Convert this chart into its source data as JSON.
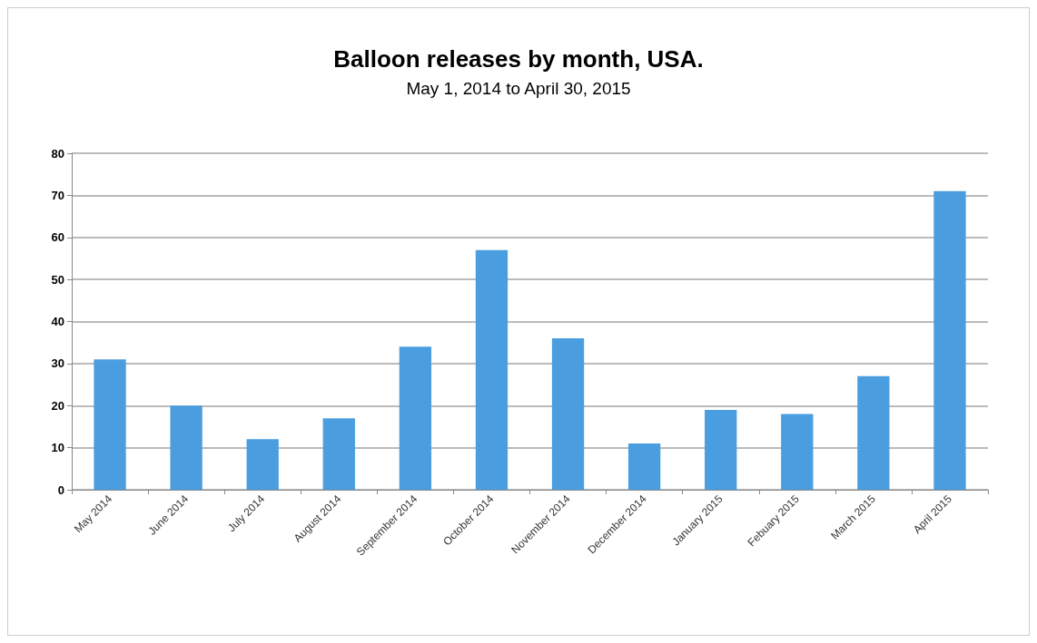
{
  "chart_data": {
    "type": "bar",
    "title": "Balloon releases by month, USA.",
    "subtitle": "May 1, 2014 to April 30, 2015",
    "categories": [
      "May 2014",
      "June 2014",
      "July 2014",
      "August 2014",
      "September 2014",
      "October 2014",
      "November 2014",
      "December 2014",
      "January 2015",
      "Febuary 2015",
      "March 2015",
      "April 2015"
    ],
    "values": [
      31,
      20,
      12,
      17,
      34,
      57,
      36,
      11,
      19,
      18,
      27,
      71
    ],
    "color": "#4a9ee0",
    "ylim": [
      0,
      80
    ],
    "yticks": [
      0,
      10,
      20,
      30,
      40,
      50,
      60,
      70,
      80
    ],
    "grid": "y"
  }
}
